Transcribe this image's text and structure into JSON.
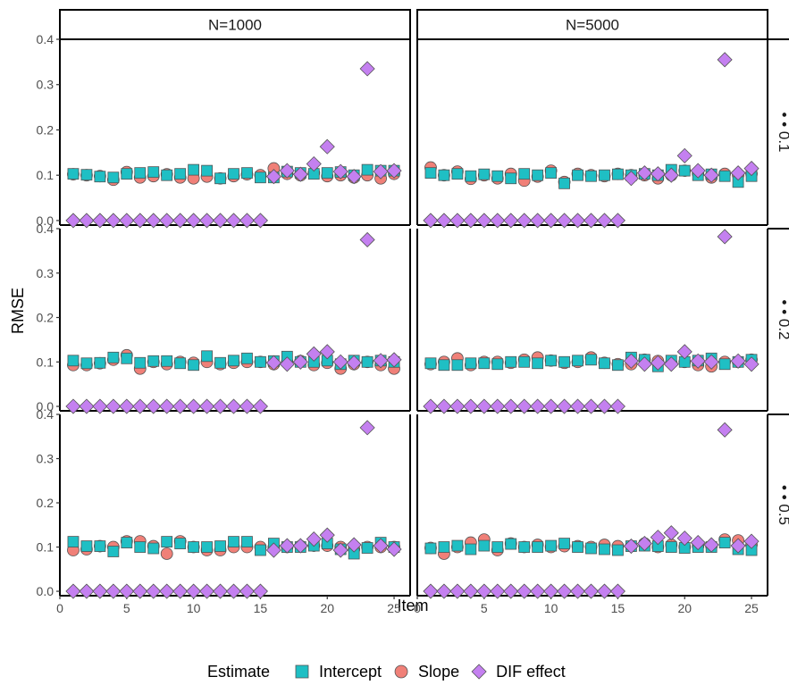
{
  "chart_data": {
    "type": "scatter",
    "xlabel": "Item",
    "ylabel": "RMSE",
    "xlim": [
      0,
      26.2
    ],
    "ylim": [
      -0.01,
      0.4
    ],
    "x_ticks": [
      0,
      5,
      10,
      15,
      20,
      25
    ],
    "y_ticks": [
      0.0,
      0.1,
      0.2,
      0.3,
      0.4
    ],
    "grid": false,
    "legend_position": "bottom",
    "legend": {
      "title": "Estimate",
      "entries": [
        {
          "name": "Intercept",
          "shape": "square",
          "color": "#1fbfc4"
        },
        {
          "name": "Slope",
          "shape": "circle",
          "color": "#f08078"
        },
        {
          "name": "DIF effect",
          "shape": "diamond",
          "color": "#c480f0"
        }
      ]
    },
    "columns": [
      "N=1000",
      "N=5000"
    ],
    "rows": [
      "• • 0.1",
      "• • 0.2",
      "• • 0.5"
    ],
    "x": [
      1,
      2,
      3,
      4,
      5,
      6,
      7,
      8,
      9,
      10,
      11,
      12,
      13,
      14,
      15,
      16,
      17,
      18,
      19,
      20,
      21,
      22,
      23,
      24,
      25
    ],
    "panels": [
      {
        "row": 0,
        "col": 0,
        "series": [
          {
            "name": "Slope",
            "values": [
              0.102,
              0.1,
              0.098,
              0.09,
              0.107,
              0.095,
              0.098,
              0.102,
              0.095,
              0.093,
              0.097,
              0.093,
              0.098,
              0.102,
              0.1,
              0.115,
              0.103,
              0.1,
              0.105,
              0.098,
              0.1,
              0.095,
              0.1,
              0.093,
              0.103
            ]
          },
          {
            "name": "Intercept",
            "values": [
              0.103,
              0.101,
              0.097,
              0.095,
              0.103,
              0.105,
              0.107,
              0.1,
              0.103,
              0.112,
              0.11,
              0.093,
              0.103,
              0.105,
              0.095,
              0.095,
              0.108,
              0.105,
              0.103,
              0.105,
              0.107,
              0.1,
              0.112,
              0.11,
              0.11
            ]
          },
          {
            "name": "DIF effect",
            "values": [
              0,
              0,
              0,
              0,
              0,
              0,
              0,
              0,
              0,
              0,
              0,
              0,
              0,
              0,
              0,
              0.097,
              0.11,
              0.102,
              0.125,
              0.163,
              0.108,
              0.097,
              0.335,
              0.108,
              0.11
            ]
          }
        ]
      },
      {
        "row": 0,
        "col": 1,
        "series": [
          {
            "name": "Slope",
            "values": [
              0.117,
              0.1,
              0.108,
              0.092,
              0.1,
              0.093,
              0.103,
              0.088,
              0.097,
              0.11,
              0.085,
              0.103,
              0.1,
              0.098,
              0.103,
              0.1,
              0.1,
              0.093,
              0.1,
              0.11,
              0.103,
              0.095,
              0.103,
              0.1,
              0.103
            ]
          },
          {
            "name": "Intercept",
            "values": [
              0.105,
              0.1,
              0.103,
              0.098,
              0.102,
              0.098,
              0.093,
              0.103,
              0.1,
              0.105,
              0.082,
              0.1,
              0.098,
              0.1,
              0.102,
              0.1,
              0.103,
              0.1,
              0.112,
              0.11,
              0.1,
              0.102,
              0.098,
              0.085,
              0.098
            ]
          },
          {
            "name": "DIF effect",
            "values": [
              0,
              0,
              0,
              0,
              0,
              0,
              0,
              0,
              0,
              0,
              0,
              0,
              0,
              0,
              0,
              0.093,
              0.105,
              0.103,
              0.1,
              0.143,
              0.11,
              0.1,
              0.355,
              0.105,
              0.115
            ]
          }
        ]
      },
      {
        "row": 1,
        "col": 0,
        "series": [
          {
            "name": "Slope",
            "values": [
              0.093,
              0.093,
              0.097,
              0.105,
              0.115,
              0.085,
              0.1,
              0.095,
              0.1,
              0.098,
              0.1,
              0.095,
              0.098,
              0.1,
              0.1,
              0.095,
              0.1,
              0.102,
              0.093,
              0.098,
              0.085,
              0.095,
              0.1,
              0.093,
              0.085
            ]
          },
          {
            "name": "Intercept",
            "values": [
              0.103,
              0.097,
              0.098,
              0.11,
              0.108,
              0.098,
              0.102,
              0.102,
              0.097,
              0.093,
              0.113,
              0.098,
              0.103,
              0.108,
              0.1,
              0.102,
              0.112,
              0.1,
              0.1,
              0.103,
              0.095,
              0.103,
              0.1,
              0.103,
              0.1
            ]
          },
          {
            "name": "DIF effect",
            "values": [
              0,
              0,
              0,
              0,
              0,
              0,
              0,
              0,
              0,
              0,
              0,
              0,
              0,
              0,
              0,
              0.098,
              0.095,
              0.1,
              0.118,
              0.123,
              0.1,
              0.098,
              0.375,
              0.103,
              0.105
            ]
          }
        ]
      },
      {
        "row": 1,
        "col": 1,
        "series": [
          {
            "name": "Slope",
            "values": [
              0.095,
              0.1,
              0.108,
              0.093,
              0.1,
              0.1,
              0.098,
              0.105,
              0.11,
              0.103,
              0.098,
              0.1,
              0.11,
              0.098,
              0.095,
              0.095,
              0.105,
              0.102,
              0.098,
              0.1,
              0.093,
              0.09,
              0.1,
              0.1,
              0.105
            ]
          },
          {
            "name": "Intercept",
            "values": [
              0.097,
              0.093,
              0.093,
              0.097,
              0.097,
              0.095,
              0.1,
              0.1,
              0.097,
              0.103,
              0.1,
              0.103,
              0.105,
              0.097,
              0.093,
              0.11,
              0.105,
              0.09,
              0.103,
              0.1,
              0.103,
              0.108,
              0.095,
              0.1,
              0.105
            ]
          },
          {
            "name": "DIF effect",
            "values": [
              0,
              0,
              0,
              0,
              0,
              0,
              0,
              0,
              0,
              0,
              0,
              0,
              0,
              0,
              0,
              0.102,
              0.095,
              0.098,
              0.095,
              0.123,
              0.102,
              0.1,
              0.382,
              0.102,
              0.095
            ]
          }
        ]
      },
      {
        "row": 2,
        "col": 0,
        "series": [
          {
            "name": "Slope",
            "values": [
              0.093,
              0.095,
              0.102,
              0.1,
              0.113,
              0.113,
              0.102,
              0.085,
              0.113,
              0.1,
              0.093,
              0.093,
              0.1,
              0.1,
              0.1,
              0.1,
              0.1,
              0.102,
              0.103,
              0.103,
              0.1,
              0.095,
              0.1,
              0.1,
              0.1
            ]
          },
          {
            "name": "Intercept",
            "values": [
              0.112,
              0.102,
              0.102,
              0.09,
              0.11,
              0.1,
              0.097,
              0.112,
              0.108,
              0.1,
              0.1,
              0.102,
              0.112,
              0.112,
              0.093,
              0.108,
              0.1,
              0.1,
              0.103,
              0.108,
              0.095,
              0.085,
              0.098,
              0.11,
              0.1
            ]
          },
          {
            "name": "DIF effect",
            "values": [
              0,
              0,
              0,
              0,
              0,
              0,
              0,
              0,
              0,
              0,
              0,
              0,
              0,
              0,
              0,
              0.093,
              0.103,
              0.103,
              0.118,
              0.127,
              0.093,
              0.105,
              0.37,
              0.103,
              0.095
            ]
          }
        ]
      },
      {
        "row": 2,
        "col": 1,
        "series": [
          {
            "name": "Slope",
            "values": [
              0.098,
              0.085,
              0.1,
              0.11,
              0.117,
              0.093,
              0.108,
              0.1,
              0.105,
              0.1,
              0.102,
              0.102,
              0.1,
              0.105,
              0.102,
              0.102,
              0.108,
              0.1,
              0.105,
              0.1,
              0.102,
              0.102,
              0.117,
              0.115,
              0.105
            ]
          },
          {
            "name": "Intercept",
            "values": [
              0.097,
              0.1,
              0.103,
              0.095,
              0.103,
              0.1,
              0.107,
              0.1,
              0.1,
              0.103,
              0.108,
              0.1,
              0.097,
              0.095,
              0.093,
              0.102,
              0.103,
              0.102,
              0.1,
              0.098,
              0.1,
              0.1,
              0.11,
              0.095,
              0.093
            ]
          },
          {
            "name": "DIF effect",
            "values": [
              0,
              0,
              0,
              0,
              0,
              0,
              0,
              0,
              0,
              0,
              0,
              0,
              0,
              0,
              0,
              0.102,
              0.108,
              0.122,
              0.132,
              0.12,
              0.11,
              0.105,
              0.365,
              0.103,
              0.113
            ]
          }
        ]
      }
    ]
  }
}
